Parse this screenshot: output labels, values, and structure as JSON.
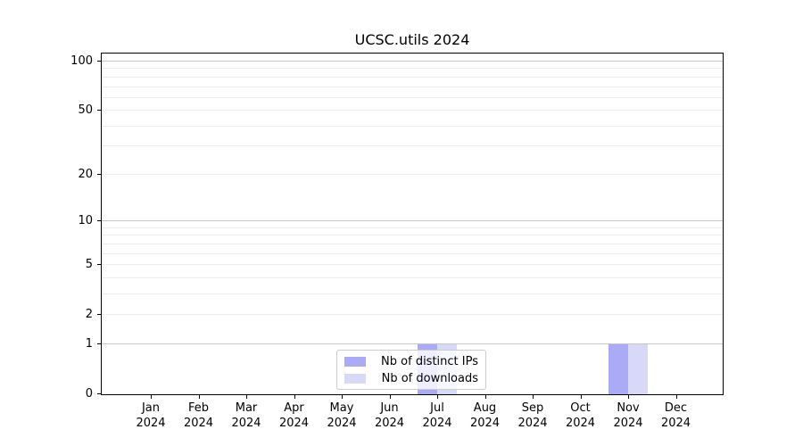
{
  "title": "UCSC.utils 2024",
  "chart_data": {
    "type": "bar",
    "title": "UCSC.utils 2024",
    "categories": [
      "Jan 2024",
      "Feb 2024",
      "Mar 2024",
      "Apr 2024",
      "May 2024",
      "Jun 2024",
      "Jul 2024",
      "Aug 2024",
      "Sep 2024",
      "Oct 2024",
      "Nov 2024",
      "Dec 2024"
    ],
    "x_tick_line1": [
      "Jan",
      "Feb",
      "Mar",
      "Apr",
      "May",
      "Jun",
      "Jul",
      "Aug",
      "Sep",
      "Oct",
      "Nov",
      "Dec"
    ],
    "x_tick_line2": [
      "2024",
      "2024",
      "2024",
      "2024",
      "2024",
      "2024",
      "2024",
      "2024",
      "2024",
      "2024",
      "2024",
      "2024"
    ],
    "series": [
      {
        "name": "Nb of distinct IPs",
        "color": "#aaaaf7",
        "values": [
          0,
          0,
          0,
          0,
          0,
          0,
          1,
          0,
          0,
          0,
          1,
          0
        ]
      },
      {
        "name": "Nb of downloads",
        "color": "#d8d8f7",
        "values": [
          0,
          0,
          0,
          0,
          0,
          0,
          1,
          0,
          0,
          0,
          1,
          0
        ]
      }
    ],
    "yscale": "log1p",
    "ylim": [
      0,
      113
    ],
    "yticks": [
      0,
      1,
      2,
      5,
      10,
      20,
      50,
      100
    ],
    "y_major_gridlines": [
      1,
      10,
      100
    ],
    "y_minor_gridlines": [
      2,
      3,
      4,
      5,
      6,
      7,
      8,
      9,
      20,
      30,
      40,
      50,
      60,
      70,
      80,
      90
    ],
    "grid": true,
    "legend": {
      "position": "inside-bottom-center",
      "items": [
        {
          "label": "Nb of distinct IPs",
          "color": "#aaaaf7"
        },
        {
          "label": "Nb of downloads",
          "color": "#d8d8f7"
        }
      ]
    }
  }
}
